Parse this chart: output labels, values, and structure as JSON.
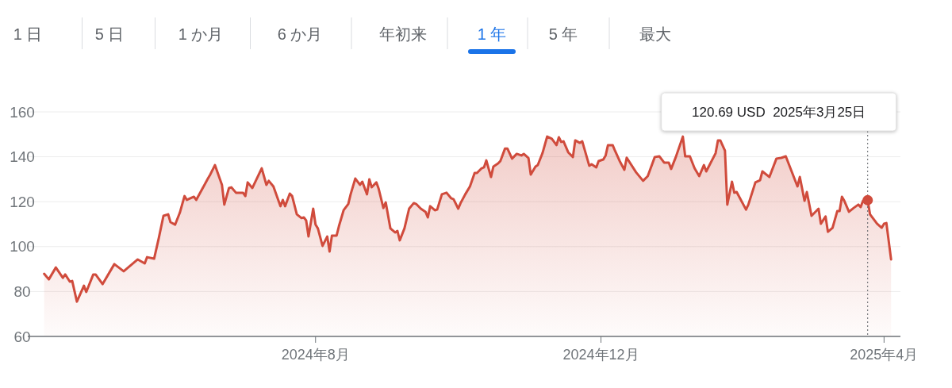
{
  "chart_data": {
    "type": "area",
    "x": [
      "2024-04-07",
      "2024-04-09",
      "2024-04-12",
      "2024-04-15",
      "2024-04-16",
      "2024-04-18",
      "2024-04-19",
      "2024-04-21",
      "2024-04-24",
      "2024-04-25",
      "2024-04-28",
      "2024-04-29",
      "2024-05-02",
      "2024-05-07",
      "2024-05-11",
      "2024-05-17",
      "2024-05-20",
      "2024-05-21",
      "2024-05-24",
      "2024-05-26",
      "2024-05-28",
      "2024-05-30",
      "2024-05-31",
      "2024-06-02",
      "2024-06-04",
      "2024-06-06",
      "2024-06-07",
      "2024-06-10",
      "2024-06-11",
      "2024-06-16",
      "2024-06-17",
      "2024-06-19",
      "2024-06-22",
      "2024-06-23",
      "2024-06-25",
      "2024-06-26",
      "2024-06-28",
      "2024-07-01",
      "2024-07-02",
      "2024-07-03",
      "2024-07-05",
      "2024-07-09",
      "2024-07-11",
      "2024-07-12",
      "2024-07-14",
      "2024-07-17",
      "2024-07-18",
      "2024-07-19",
      "2024-07-21",
      "2024-07-22",
      "2024-07-24",
      "2024-07-26",
      "2024-07-27",
      "2024-07-28",
      "2024-07-29",
      "2024-07-31",
      "2024-08-01",
      "2024-08-02",
      "2024-08-04",
      "2024-08-06",
      "2024-08-07",
      "2024-08-08",
      "2024-08-10",
      "2024-08-11",
      "2024-08-13",
      "2024-08-15",
      "2024-08-16",
      "2024-08-18",
      "2024-08-20",
      "2024-08-21",
      "2024-08-23",
      "2024-08-24",
      "2024-08-25",
      "2024-08-27",
      "2024-08-28",
      "2024-08-30",
      "2024-08-31",
      "2024-09-02",
      "2024-09-04",
      "2024-09-05",
      "2024-09-06",
      "2024-09-08",
      "2024-09-10",
      "2024-09-12",
      "2024-09-13",
      "2024-09-15",
      "2024-09-17",
      "2024-09-18",
      "2024-09-19",
      "2024-09-21",
      "2024-09-22",
      "2024-09-24",
      "2024-09-26",
      "2024-09-28",
      "2024-09-29",
      "2024-10-01",
      "2024-10-02",
      "2024-10-04",
      "2024-10-06",
      "2024-10-08",
      "2024-10-09",
      "2024-10-11",
      "2024-10-12",
      "2024-10-13",
      "2024-10-15",
      "2024-10-16",
      "2024-10-18",
      "2024-10-19",
      "2024-10-21",
      "2024-10-22",
      "2024-10-24",
      "2024-10-26",
      "2024-10-28",
      "2024-10-29",
      "2024-10-31",
      "2024-11-01",
      "2024-11-03",
      "2024-11-04",
      "2024-11-06",
      "2024-11-08",
      "2024-11-10",
      "2024-11-12",
      "2024-11-13",
      "2024-11-14",
      "2024-11-15",
      "2024-11-17",
      "2024-11-19",
      "2024-11-20",
      "2024-11-22",
      "2024-11-23",
      "2024-11-26",
      "2024-11-27",
      "2024-11-29",
      "2024-11-30",
      "2024-12-02",
      "2024-12-03",
      "2024-12-04",
      "2024-12-06",
      "2024-12-07",
      "2024-12-09",
      "2024-12-11",
      "2024-12-12",
      "2024-12-16",
      "2024-12-19",
      "2024-12-21",
      "2024-12-24",
      "2024-12-26",
      "2024-12-28",
      "2024-12-30",
      "2024-12-31",
      "2025-01-02",
      "2025-01-05",
      "2025-01-06",
      "2025-01-08",
      "2025-01-10",
      "2025-01-12",
      "2025-01-14",
      "2025-01-15",
      "2025-01-19",
      "2025-01-20",
      "2025-01-21",
      "2025-01-23",
      "2025-01-24",
      "2025-01-26",
      "2025-01-27",
      "2025-01-28",
      "2025-02-01",
      "2025-02-02",
      "2025-02-05",
      "2025-02-07",
      "2025-02-08",
      "2025-02-11",
      "2025-02-14",
      "2025-02-16",
      "2025-02-18",
      "2025-02-23",
      "2025-02-24",
      "2025-02-26",
      "2025-02-27",
      "2025-03-01",
      "2025-03-04",
      "2025-03-05",
      "2025-03-07",
      "2025-03-08",
      "2025-03-10",
      "2025-03-12",
      "2025-03-13",
      "2025-03-14",
      "2025-03-15",
      "2025-03-17",
      "2025-03-19",
      "2025-03-21",
      "2025-03-22",
      "2025-03-23",
      "2025-03-25",
      "2025-03-26",
      "2025-03-29",
      "2025-03-31",
      "2025-04-01",
      "2025-04-02",
      "2025-04-04"
    ],
    "series": [
      {
        "color": "#d04b3c",
        "values": [
          87.9,
          85.4,
          90.7,
          86.1,
          87.6,
          84.4,
          84.7,
          75.5,
          82.6,
          79.8,
          87.6,
          87.6,
          83.3,
          92.2,
          89.0,
          94.3,
          92.5,
          95.3,
          94.6,
          103.8,
          113.7,
          114.4,
          110.9,
          109.8,
          115.1,
          122.5,
          120.8,
          122.2,
          120.8,
          130.3,
          132.1,
          136.3,
          127.5,
          118.7,
          126.1,
          126.4,
          124.0,
          124.0,
          122.5,
          128.6,
          126.1,
          134.9,
          127.5,
          129.3,
          126.8,
          118.0,
          120.8,
          118.0,
          123.6,
          122.5,
          114.4,
          112.7,
          113.0,
          111.6,
          104.5,
          116.9,
          109.8,
          108.1,
          100.3,
          104.5,
          97.8,
          104.9,
          104.9,
          109.1,
          116.2,
          119.0,
          123.3,
          130.3,
          127.5,
          128.9,
          123.3,
          130.0,
          126.4,
          128.6,
          125.7,
          117.2,
          119.7,
          108.1,
          106.3,
          107.0,
          102.8,
          108.1,
          116.9,
          119.4,
          119.0,
          116.9,
          115.5,
          113.0,
          118.0,
          116.2,
          116.5,
          123.3,
          124.0,
          121.5,
          121.1,
          116.9,
          119.4,
          123.3,
          126.8,
          132.8,
          132.8,
          134.9,
          135.3,
          138.4,
          131.0,
          135.6,
          137.0,
          138.1,
          143.7,
          143.7,
          139.2,
          141.3,
          140.6,
          141.3,
          139.5,
          132.1,
          135.6,
          136.3,
          141.6,
          149.0,
          148.0,
          145.2,
          148.7,
          146.6,
          146.9,
          142.0,
          139.9,
          147.3,
          146.2,
          146.9,
          136.0,
          136.7,
          135.3,
          138.1,
          138.8,
          140.6,
          145.2,
          145.2,
          142.7,
          138.1,
          134.2,
          139.6,
          133.1,
          129.3,
          131.4,
          139.9,
          140.2,
          137.4,
          137.4,
          134.6,
          139.9,
          149.0,
          140.2,
          140.2,
          134.9,
          131.4,
          136.3,
          133.5,
          141.6,
          147.3,
          147.3,
          142.7,
          118.7,
          128.9,
          124.0,
          124.3,
          116.5,
          118.7,
          128.6,
          129.6,
          133.5,
          131.0,
          139.2,
          139.5,
          140.2,
          126.8,
          131.0,
          120.4,
          124.3,
          113.7,
          116.9,
          110.2,
          113.4,
          106.6,
          108.4,
          115.8,
          115.8,
          122.2,
          120.4,
          115.5,
          117.2,
          118.7,
          117.6,
          120.4,
          120.69,
          114.4,
          110.2,
          108.4,
          110.2,
          110.5,
          94.3
        ]
      }
    ],
    "xlim": [
      "2024-03-31",
      "2025-04-08"
    ],
    "xticks": [
      {
        "value": "2024-08-01",
        "label": "2024年8月"
      },
      {
        "value": "2024-12-01",
        "label": "2024年12月"
      },
      {
        "value": "2025-04-01",
        "label": "2025年4月"
      }
    ],
    "ylim": [
      60,
      160
    ],
    "yticks": [
      60,
      80,
      100,
      120,
      140,
      160
    ],
    "grid": "y",
    "line_style": "solid",
    "ref_lines": [
      {
        "axis": "x",
        "value": "2025-03-25",
        "color": "#5f6368",
        "line_style": "dotted"
      }
    ],
    "annotations": [
      "1 日",
      "5 日",
      "1 か月",
      "6 か月",
      "年初来",
      "1 年",
      "5 年",
      "最大",
      "120.69 USD  2025年3月25日"
    ]
  }
}
